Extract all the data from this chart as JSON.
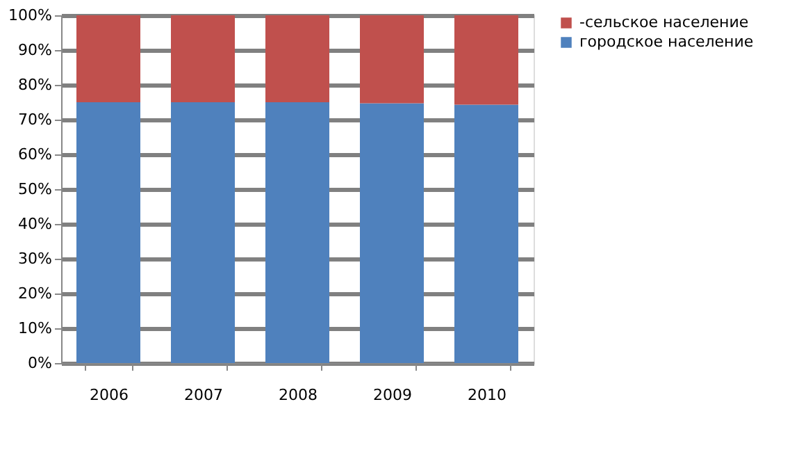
{
  "chart_data": {
    "type": "bar",
    "stacked": true,
    "categories": [
      "2006",
      "2007",
      "2008",
      "2009",
      "2010"
    ],
    "series": [
      {
        "name": "городское население",
        "color": "#4f81bd",
        "values": [
          75,
          75,
          75,
          74.7,
          74.3
        ]
      },
      {
        "name": "-сельское население",
        "color": "#c0504d",
        "values": [
          25,
          25,
          25,
          25.3,
          25.7
        ]
      }
    ],
    "ylim": [
      0,
      100
    ],
    "yticks": [
      {
        "value": 0,
        "label": "0%"
      },
      {
        "value": 10,
        "label": "10%"
      },
      {
        "value": 20,
        "label": "20%"
      },
      {
        "value": 30,
        "label": "30%"
      },
      {
        "value": 40,
        "label": "40%"
      },
      {
        "value": 50,
        "label": "50%"
      },
      {
        "value": 60,
        "label": "60%"
      },
      {
        "value": 70,
        "label": "70%"
      },
      {
        "value": 80,
        "label": "80%"
      },
      {
        "value": 90,
        "label": "90%"
      },
      {
        "value": 100,
        "label": "100%"
      }
    ],
    "grid": "y",
    "legend": "right"
  }
}
